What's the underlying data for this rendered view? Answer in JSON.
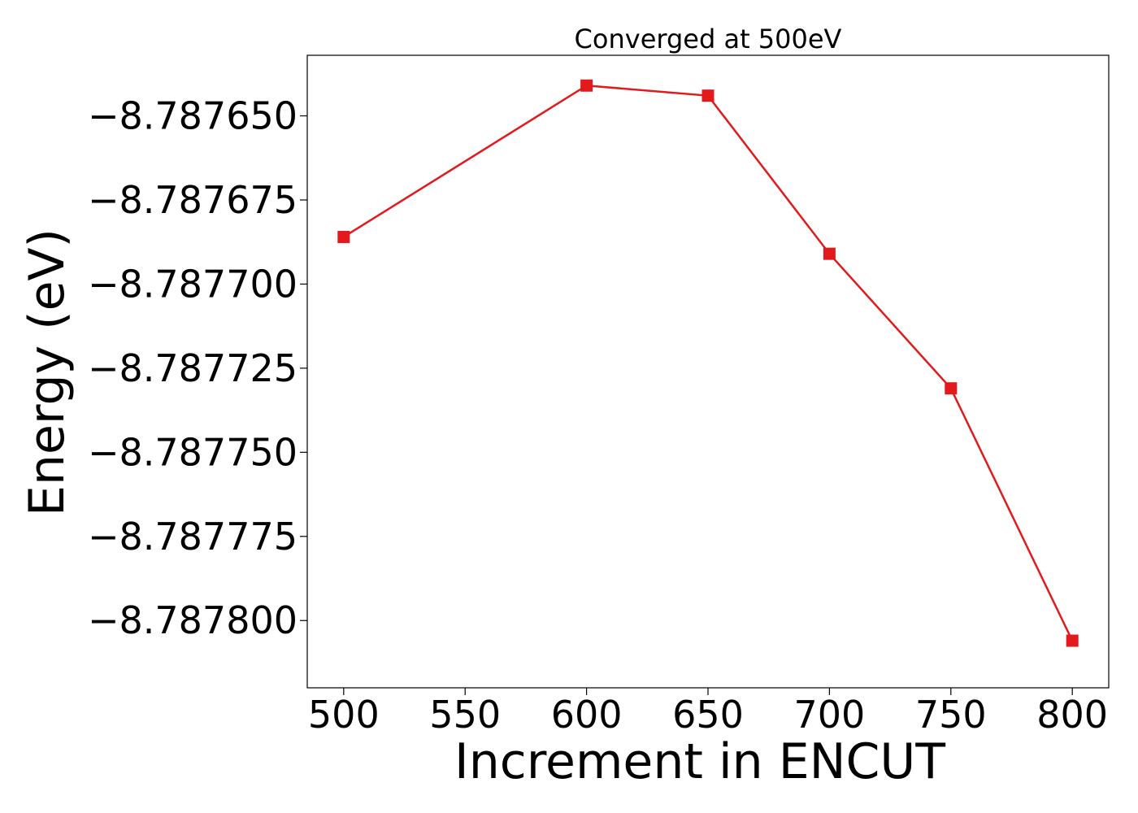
{
  "chart_data": {
    "type": "line",
    "title": "Converged at 500eV",
    "xlabel": "Increment in ENCUT",
    "ylabel": "Energy (eV)",
    "x": [
      500,
      600,
      650,
      700,
      750,
      800
    ],
    "series": [
      {
        "values": [
          -8.787686,
          -8.787641,
          -8.787644,
          -8.787691,
          -8.787731,
          -8.787806
        ],
        "color": "#e31a1c",
        "marker": "square"
      }
    ],
    "xlim": [
      485,
      815
    ],
    "ylim": [
      -8.78782,
      -8.787632
    ],
    "xticks": [
      500,
      550,
      600,
      650,
      700,
      750,
      800
    ],
    "xtick_labels": [
      "500",
      "550",
      "600",
      "650",
      "700",
      "750",
      "800"
    ],
    "yticks": [
      -8.78765,
      -8.787675,
      -8.7877,
      -8.787725,
      -8.78775,
      -8.787775,
      -8.7878
    ],
    "ytick_labels": [
      "−8.787650",
      "−8.787675",
      "−8.787700",
      "−8.787725",
      "−8.787750",
      "−8.787775",
      "−8.787800"
    ],
    "grid": false,
    "legend": "none"
  }
}
